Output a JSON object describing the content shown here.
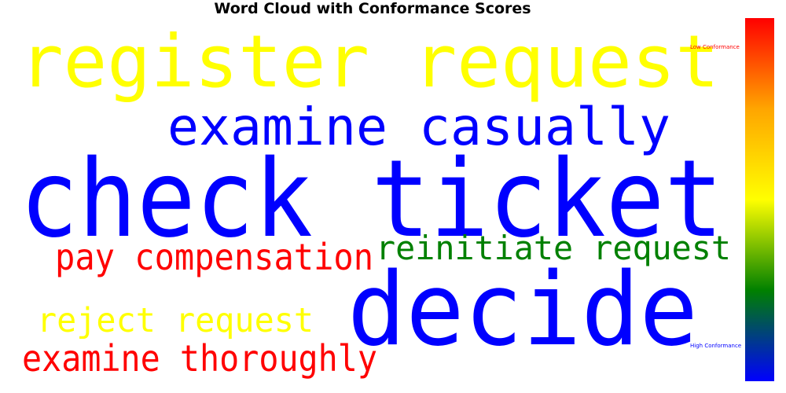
{
  "chart_data": {
    "type": "wordcloud",
    "title": "Word Cloud with Conformance Scores",
    "words": [
      {
        "text": "register request",
        "color": "#ffff00"
      },
      {
        "text": "examine casually",
        "color": "#0000ff"
      },
      {
        "text": "check ticket",
        "color": "#0000ff"
      },
      {
        "text": "pay compensation",
        "color": "#ff0000"
      },
      {
        "text": "reinitiate request",
        "color": "#008000"
      },
      {
        "text": "decide",
        "color": "#0000ff"
      },
      {
        "text": "reject request",
        "color": "#ffff00"
      },
      {
        "text": "examine thoroughly",
        "color": "#ff0000"
      }
    ],
    "colorbar": {
      "low_label": "Low Conformance",
      "high_label": "High Conformance",
      "colors": [
        "#ff0000",
        "#ffa500",
        "#ffff00",
        "#008000",
        "#0000ff"
      ]
    }
  }
}
